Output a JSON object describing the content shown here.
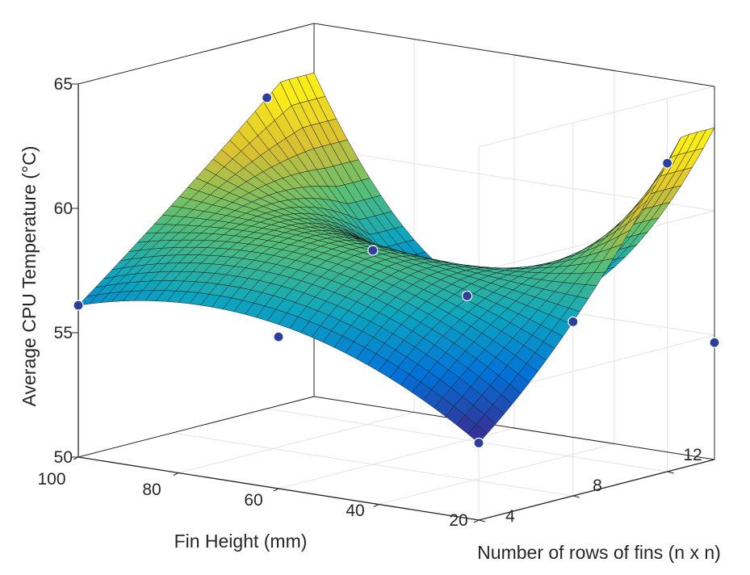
{
  "chart_data": {
    "type": "surface3d",
    "title": "",
    "xlabel": "Fin Height (mm)",
    "ylabel": "Number of rows of fins (n x n)",
    "zlabel": "Average CPU Temperature (°C)",
    "x_ticks": [
      "100",
      "80",
      "60",
      "40",
      "20"
    ],
    "y_ticks": [
      "4",
      "8",
      "12"
    ],
    "z_ticks": [
      "50",
      "55",
      "60",
      "65"
    ],
    "xlim": [
      20,
      100
    ],
    "ylim": [
      4,
      14
    ],
    "zlim": [
      50,
      65
    ],
    "grid": true,
    "colormap": "parula",
    "marker_color": "#2e3f9a",
    "points": [
      {
        "x": 100,
        "y": 4,
        "z": 56.1
      },
      {
        "x": 100,
        "y": 12,
        "z": 62.5
      },
      {
        "x": 60,
        "y": 8,
        "z": 58.6
      },
      {
        "x": 20,
        "y": 12,
        "z": 62.4
      },
      {
        "x": 60,
        "y": 4,
        "z": 56.1
      },
      {
        "x": 60,
        "y": 12,
        "z": 55.8
      },
      {
        "x": 20,
        "y": 8,
        "z": 57.0
      },
      {
        "x": 20,
        "y": 4,
        "z": 53.1
      },
      {
        "x": 20,
        "y": 14,
        "z": 54.7
      }
    ]
  }
}
